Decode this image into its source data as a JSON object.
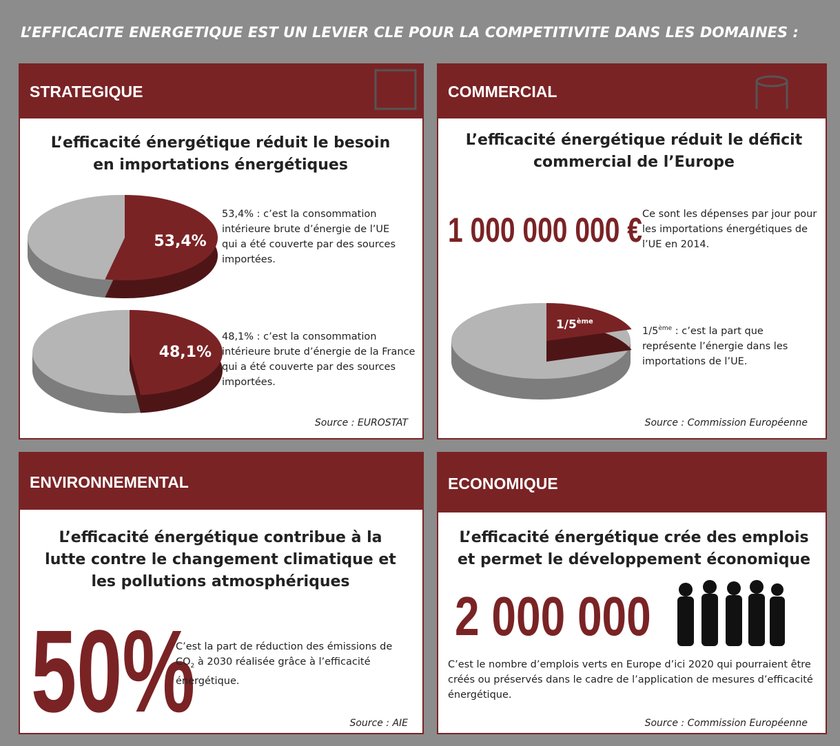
{
  "title": "L’EFFICACITE ENERGETIQUE EST UN LEVIER CLE POUR LA COMPETITIVITE DANS LES DOMAINES :",
  "panels": [
    {
      "heading": "STRATEGIQUE",
      "headline": "L’efficacité énergétique réduit le besoin en importations énergétiques",
      "pies": [
        {
          "value": 53.4,
          "label": "53,4%",
          "text": "53,4% : c’est la consommation intérieure brute d’énergie de l’UE qui a été couverte par des sources importées."
        },
        {
          "value": 48.1,
          "label": "48,1%",
          "text": "48,1% : c’est la consommation intérieure brute d’énergie de la France qui a été couverte par des sources importées."
        }
      ],
      "source": "Source : EUROSTAT"
    },
    {
      "heading": "COMMERCIAL",
      "headline": "L’efficacité énergétique réduit le déficit commercial de l’Europe",
      "figure": "1 000 000 000 €",
      "figure_text": "Ce sont les dépenses par jour pour les importations énergétiques de l’UE en 2014.",
      "pie": {
        "value": 20,
        "label": "1/5",
        "label_sup": "ème",
        "text_main": "1/5",
        "text_sup": "ème",
        "text": " : c’est la part que représente l’énergie dans les importations de l’UE."
      },
      "source": "Source : Commission Européenne"
    },
    {
      "heading": "ENVIRONNEMENTAL",
      "headline": "L’efficacité énergétique contribue à la lutte contre le changement climatique et les pollutions atmosphériques",
      "figure": "50%",
      "text_before": "C’est la part de réduction des émissions de CO",
      "text_sub": "2",
      "text_after": " à 2030 réalisée grâce à l’efficacité énergétique.",
      "source": "Source : AIE"
    },
    {
      "heading": "ECONOMIQUE",
      "headline": "L’efficacité énergétique crée des emplois et permet le développement économique",
      "figure": "2 000 000",
      "figure_text": "C’est le nombre d’emplois verts en Europe d’ici 2020 qui pourraient être créés ou préservés dans le cadre de l’application de mesures d’efficacité énergétique.",
      "source": "Source : Commission Européenne"
    }
  ]
}
